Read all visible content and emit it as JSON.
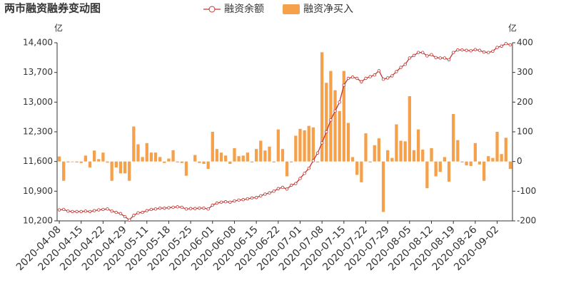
{
  "chart_data": {
    "type": "combo",
    "title": "两市融资融券变动图",
    "y_unit": "亿",
    "y2_unit": "亿",
    "categories": [
      "2020-04-08",
      null,
      null,
      null,
      null,
      "2020-04-15",
      null,
      null,
      null,
      null,
      "2020-04-22",
      null,
      null,
      null,
      null,
      "2020-04-29",
      null,
      null,
      null,
      null,
      "2020-05-11",
      null,
      null,
      null,
      null,
      "2020-05-18",
      null,
      null,
      null,
      null,
      "2020-05-25",
      null,
      null,
      null,
      null,
      "2020-06-01",
      null,
      null,
      null,
      null,
      "2020-06-08",
      null,
      null,
      null,
      null,
      "2020-06-15",
      null,
      null,
      null,
      null,
      "2020-06-22",
      null,
      null,
      null,
      null,
      "2020-07-01",
      null,
      null,
      null,
      null,
      "2020-07-08",
      null,
      null,
      null,
      null,
      "2020-07-15",
      null,
      null,
      null,
      null,
      "2020-07-22",
      null,
      null,
      null,
      null,
      "2020-07-29",
      null,
      null,
      null,
      null,
      "2020-08-05",
      null,
      null,
      null,
      null,
      "2020-08-12",
      null,
      null,
      null,
      null,
      "2020-08-19",
      null,
      null,
      null,
      null,
      "2020-08-26",
      null,
      null,
      null,
      null,
      "2020-09-02",
      null,
      null,
      null
    ],
    "series": [
      {
        "name": "融资余额",
        "type": "line",
        "color": "#c23531",
        "values": [
          10460,
          10470,
          10430,
          10420,
          10420,
          10420,
          10430,
          10420,
          10440,
          10460,
          10470,
          10480,
          10430,
          10400,
          10370,
          10300,
          10220,
          10330,
          10390,
          10400,
          10440,
          10470,
          10480,
          10500,
          10500,
          10510,
          10520,
          10530,
          10520,
          10480,
          10490,
          10490,
          10500,
          10500,
          10480,
          10570,
          10620,
          10640,
          10650,
          10640,
          10670,
          10690,
          10700,
          10720,
          10740,
          10750,
          10790,
          10830,
          10860,
          10900,
          10960,
          10990,
          10950,
          11040,
          11080,
          11200,
          11320,
          11440,
          11620,
          11800,
          12040,
          12300,
          12580,
          12790,
          13000,
          13400,
          13560,
          13590,
          13560,
          13480,
          13560,
          13600,
          13640,
          13740,
          13540,
          13570,
          13620,
          13720,
          13820,
          13890,
          14040,
          14100,
          14170,
          14170,
          14090,
          14120,
          14050,
          14040,
          14040,
          14000,
          14170,
          14230,
          14230,
          14220,
          14210,
          14240,
          14220,
          14180,
          14170,
          14200,
          14290,
          14320,
          14380,
          14350
        ]
      },
      {
        "name": "融资净买入",
        "type": "bar",
        "axis": "y2",
        "color": "#f5a04b",
        "values": [
          17,
          -65,
          -3,
          -2,
          -3,
          -5,
          20,
          -20,
          37,
          8,
          30,
          -4,
          -65,
          -20,
          -40,
          -40,
          -65,
          118,
          58,
          15,
          62,
          30,
          30,
          15,
          -5,
          10,
          38,
          -3,
          -5,
          -48,
          0,
          22,
          -5,
          -8,
          -25,
          100,
          42,
          30,
          20,
          -8,
          45,
          18,
          20,
          30,
          -3,
          42,
          70,
          37,
          50,
          -3,
          108,
          42,
          -50,
          -3,
          87,
          110,
          105,
          120,
          115,
          -3,
          368,
          265,
          305,
          240,
          170,
          305,
          130,
          15,
          -45,
          -70,
          95,
          -3,
          55,
          78,
          -170,
          38,
          12,
          125,
          70,
          68,
          220,
          38,
          108,
          40,
          -90,
          45,
          -50,
          -35,
          15,
          -68,
          160,
          72,
          -3,
          -13,
          -15,
          62,
          -10,
          -65,
          18,
          12,
          100,
          25,
          80,
          -25
        ]
      }
    ],
    "ylim": [
      10200,
      14400
    ],
    "yticks": [
      {
        "value": 10200,
        "label": "10,200"
      },
      {
        "value": 10900,
        "label": "10,900"
      },
      {
        "value": 11600,
        "label": "11,600"
      },
      {
        "value": 12300,
        "label": "12,300"
      },
      {
        "value": 13000,
        "label": "13,000"
      },
      {
        "value": 13700,
        "label": "13,700"
      },
      {
        "value": 14400,
        "label": "14,400"
      }
    ],
    "y2lim": [
      -200,
      400
    ],
    "y2ticks": [
      -200,
      -100,
      0,
      100,
      200,
      300,
      400
    ],
    "grid": false
  }
}
